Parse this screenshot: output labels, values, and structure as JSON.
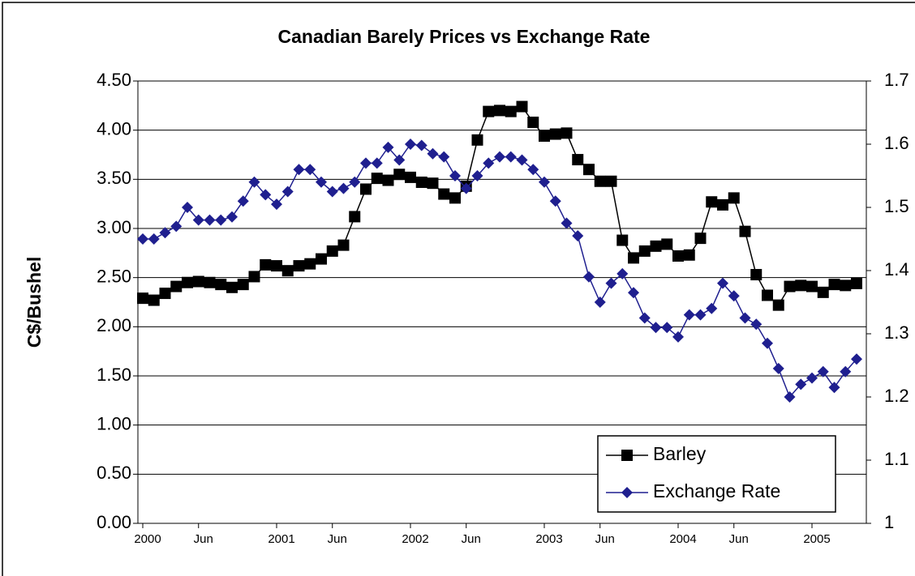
{
  "chart_data": {
    "type": "line",
    "title": "Canadian Barely Prices vs Exchange Rate",
    "y_label": "C$/Bushel",
    "categories": [
      "2000",
      null,
      null,
      null,
      null,
      "Jun",
      null,
      null,
      null,
      null,
      null,
      null,
      "2001",
      null,
      null,
      null,
      null,
      "Jun",
      null,
      null,
      null,
      null,
      null,
      null,
      "2002",
      null,
      null,
      null,
      null,
      "Jun",
      null,
      null,
      null,
      null,
      null,
      null,
      "2003",
      null,
      null,
      null,
      null,
      "Jun",
      null,
      null,
      null,
      null,
      null,
      null,
      "2004",
      null,
      null,
      null,
      null,
      "Jun",
      null,
      null,
      null,
      null,
      null,
      null,
      "2005",
      null,
      null,
      null,
      null
    ],
    "series": [
      {
        "name": "Barley",
        "color": "#000000",
        "marker": "square",
        "values": [
          2.29,
          2.27,
          2.34,
          2.41,
          2.45,
          2.46,
          2.45,
          2.43,
          2.4,
          2.43,
          2.51,
          2.63,
          2.62,
          2.57,
          2.62,
          2.64,
          2.69,
          2.77,
          2.83,
          3.12,
          3.4,
          3.51,
          3.49,
          3.55,
          3.52,
          3.47,
          3.46,
          3.35,
          3.31,
          3.43,
          3.9,
          4.19,
          4.2,
          4.19,
          4.24,
          4.08,
          3.94,
          3.96,
          3.97,
          3.7,
          3.6,
          3.48,
          3.48,
          2.88,
          2.7,
          2.77,
          2.82,
          2.84,
          2.72,
          2.73,
          2.9,
          3.27,
          3.24,
          3.31,
          2.97,
          2.53,
          2.32,
          2.22,
          2.41,
          2.42,
          2.41,
          2.35,
          2.43,
          2.42,
          2.44
        ]
      },
      {
        "name": "Exchange Rate",
        "color": "#1f1f8f",
        "marker": "diamond",
        "axis": "y2",
        "values": [
          1.45,
          1.45,
          1.46,
          1.47,
          1.5,
          1.48,
          1.48,
          1.48,
          1.485,
          1.51,
          1.54,
          1.52,
          1.505,
          1.525,
          1.56,
          1.56,
          1.54,
          1.525,
          1.53,
          1.54,
          1.57,
          1.57,
          1.595,
          1.575,
          1.6,
          1.598,
          1.585,
          1.58,
          1.55,
          1.53,
          1.55,
          1.57,
          1.58,
          1.58,
          1.575,
          1.56,
          1.54,
          1.51,
          1.475,
          1.455,
          1.39,
          1.35,
          1.38,
          1.395,
          1.365,
          1.325,
          1.31,
          1.31,
          1.295,
          1.33,
          1.33,
          1.34,
          1.38,
          1.36,
          1.325,
          1.315,
          1.285,
          1.245,
          1.2,
          1.22,
          1.23,
          1.24,
          1.215,
          1.24,
          1.26
        ]
      }
    ],
    "ylim": [
      0,
      4.5
    ],
    "yticks": [
      {
        "value": 0,
        "label": "0.00"
      },
      {
        "value": 0.5,
        "label": "0.50"
      },
      {
        "value": 1,
        "label": "1.00"
      },
      {
        "value": 1.5,
        "label": "1.50"
      },
      {
        "value": 2,
        "label": "2.00"
      },
      {
        "value": 2.5,
        "label": "2.50"
      },
      {
        "value": 3,
        "label": "3.00"
      },
      {
        "value": 3.5,
        "label": "3.50"
      },
      {
        "value": 4,
        "label": "4.00"
      },
      {
        "value": 4.5,
        "label": "4.50"
      }
    ],
    "y2lim": [
      1,
      1.7
    ],
    "y2ticks": [
      1,
      1.1,
      1.2,
      1.3,
      1.4,
      1.5,
      1.6,
      1.7
    ],
    "grid": true,
    "legend": "lower right"
  }
}
